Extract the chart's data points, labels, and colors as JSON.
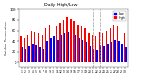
{
  "title": "Daily High/Low",
  "ylabel_left": "Outdoor Temperature",
  "highs": [
    48,
    45,
    52,
    60,
    58,
    55,
    50,
    65,
    70,
    72,
    68,
    75,
    80,
    85,
    82,
    78,
    72,
    68,
    65,
    55,
    50,
    48,
    58,
    55,
    60,
    65,
    70,
    68,
    62,
    55
  ],
  "lows": [
    28,
    25,
    30,
    35,
    32,
    28,
    25,
    40,
    45,
    48,
    42,
    50,
    55,
    58,
    54,
    50,
    45,
    42,
    38,
    30,
    25,
    22,
    32,
    30,
    35,
    38,
    42,
    40,
    35,
    28
  ],
  "high_color": "#ff0000",
  "low_color": "#0000ff",
  "bg_color": "#ffffff",
  "plot_bg": "#ffffff",
  "ylim": [
    -10,
    100
  ],
  "ytick_vals": [
    0,
    20,
    40,
    60,
    80,
    100
  ],
  "dashed_lines": [
    20,
    22
  ],
  "legend_high": "High",
  "legend_low": "Low"
}
